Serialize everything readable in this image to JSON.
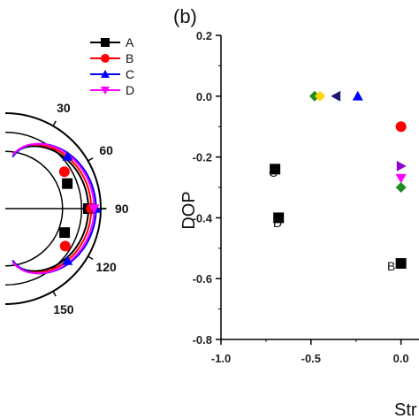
{
  "panel_b_label": "(b)",
  "chart_data": [
    {
      "type": "line",
      "subtype": "polar",
      "angle_ticks": [
        "30",
        "60",
        "90",
        "120",
        "150"
      ],
      "legend": {
        "placement": "top-right",
        "entries": [
          {
            "name": "A",
            "color": "#000000",
            "marker": "square"
          },
          {
            "name": "B",
            "color": "#ff0000",
            "marker": "circle"
          },
          {
            "name": "C",
            "color": "#0000ff",
            "marker": "triangle-up"
          },
          {
            "name": "D",
            "color": "#ff00ff",
            "marker": "triangle-down"
          }
        ]
      },
      "series": [
        {
          "name": "A",
          "points": [
            [
              68,
              0.7
            ],
            [
              90,
              0.87
            ],
            [
              112,
              0.67
            ]
          ]
        },
        {
          "name": "B",
          "points": [
            [
              58,
              0.73
            ],
            [
              90,
              0.9
            ],
            [
              122,
              0.74
            ]
          ]
        },
        {
          "name": "C",
          "points": [
            [
              50,
              0.85
            ],
            [
              90,
              0.95
            ],
            [
              130,
              0.85
            ]
          ]
        },
        {
          "name": "D",
          "points": [
            [
              90,
              0.93
            ]
          ]
        }
      ]
    },
    {
      "type": "scatter",
      "xlabel": "Str",
      "ylabel": "DOP",
      "xlim": [
        -1.0,
        0.1
      ],
      "ylim": [
        -0.8,
        0.2
      ],
      "xticks": [
        "-1.0",
        "-0.5",
        "0.0"
      ],
      "yticks": [
        "0.2",
        "0.0",
        "-0.2",
        "-0.4",
        "-0.6",
        "-0.8"
      ],
      "annotations": [
        "C",
        "D",
        "B"
      ],
      "points": [
        {
          "x": -0.48,
          "y": 0.0,
          "color": "#228B22",
          "marker": "diamond"
        },
        {
          "x": -0.45,
          "y": 0.0,
          "color": "#FFD700",
          "marker": "diamond"
        },
        {
          "x": -0.36,
          "y": 0.0,
          "color": "#191970",
          "marker": "triangle-left"
        },
        {
          "x": -0.24,
          "y": 0.0,
          "color": "#0000ff",
          "marker": "triangle-up"
        },
        {
          "x": -0.7,
          "y": -0.24,
          "color": "#000000",
          "marker": "square"
        },
        {
          "x": -0.68,
          "y": -0.4,
          "color": "#000000",
          "marker": "square"
        },
        {
          "x": 0.0,
          "y": -0.55,
          "color": "#000000",
          "marker": "square"
        },
        {
          "x": 0.0,
          "y": -0.1,
          "color": "#ff0000",
          "marker": "circle"
        },
        {
          "x": 0.0,
          "y": -0.23,
          "color": "#9400D3",
          "marker": "triangle-right"
        },
        {
          "x": 0.0,
          "y": -0.27,
          "color": "#ff00ff",
          "marker": "triangle-down"
        },
        {
          "x": 0.0,
          "y": -0.3,
          "color": "#228B22",
          "marker": "diamond"
        }
      ]
    }
  ]
}
